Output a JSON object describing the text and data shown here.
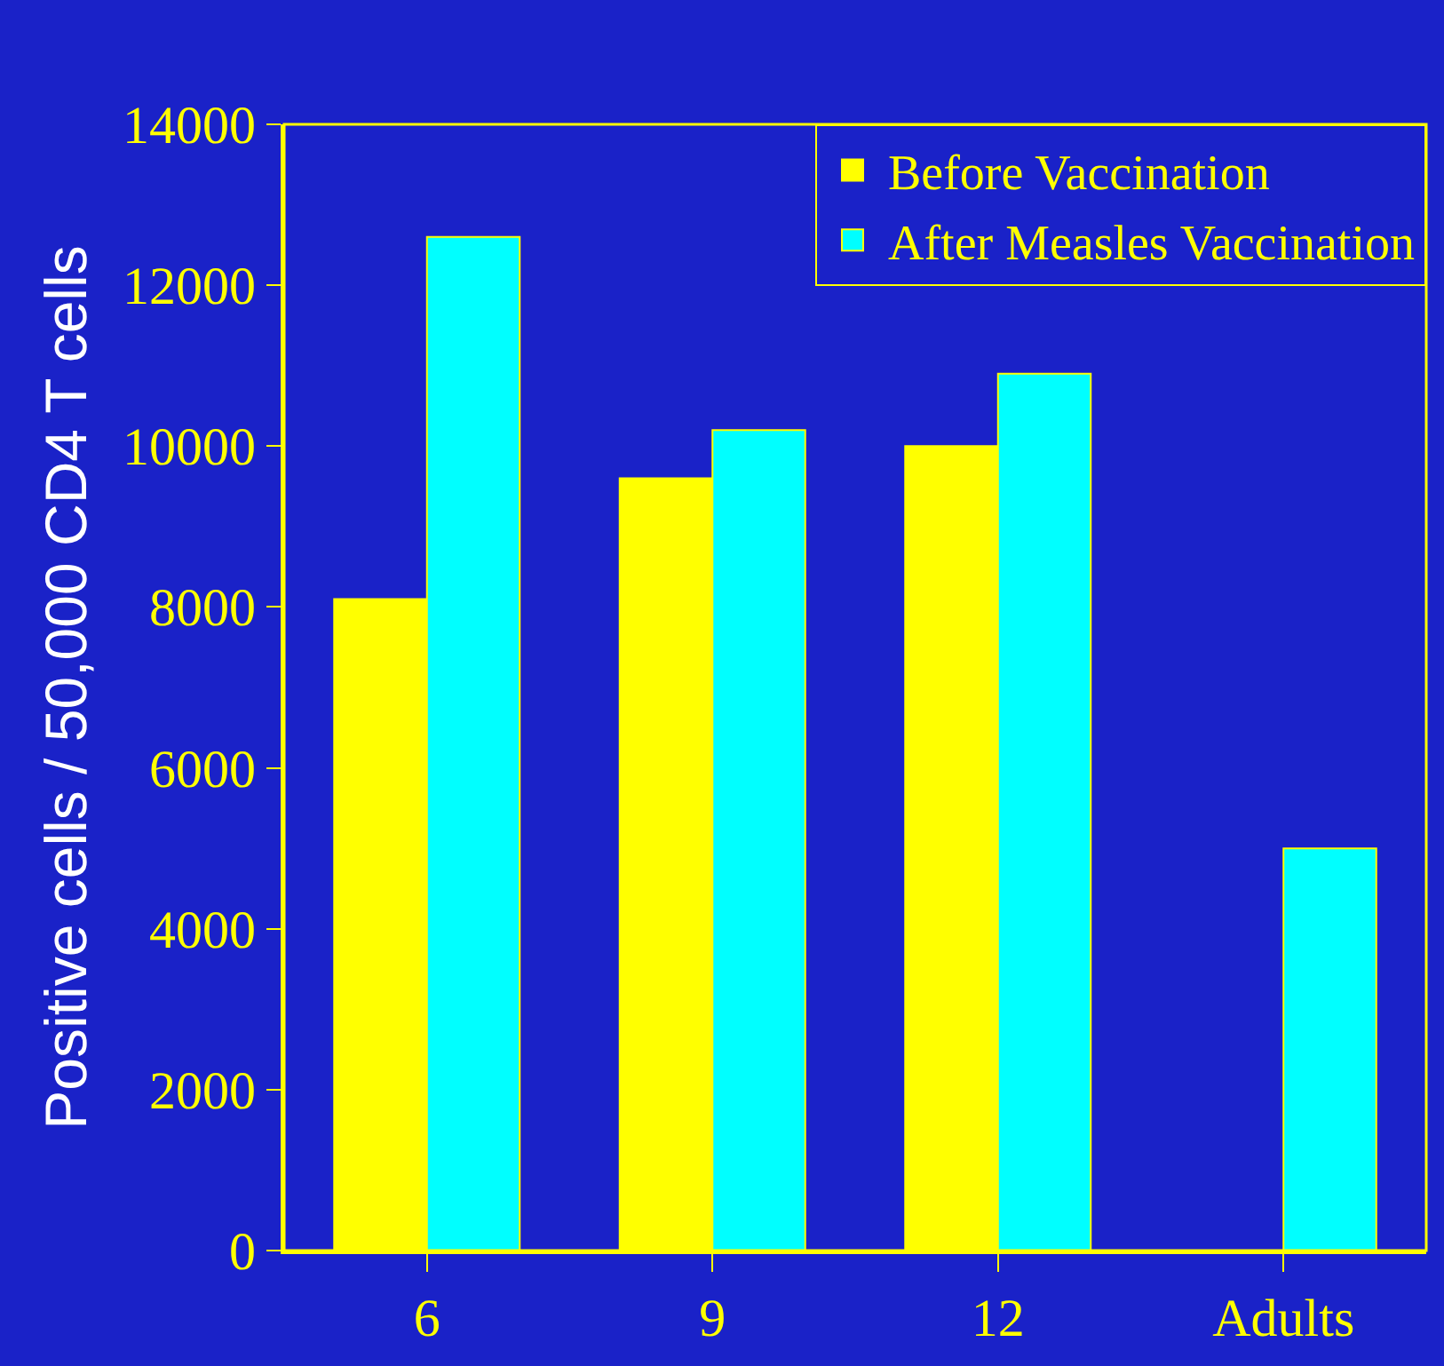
{
  "chart_data": {
    "type": "bar",
    "ylabel": "Positive cells / 50,000 CD4 T cells",
    "categories": [
      "6",
      "9",
      "12",
      "Adults"
    ],
    "series": [
      {
        "name": "Before Vaccination",
        "color": "#ffff00",
        "values": [
          8100,
          9600,
          10000,
          null
        ]
      },
      {
        "name": "After Measles Vaccination",
        "color": "#00ffff",
        "values": [
          12600,
          10200,
          10900,
          5000
        ]
      }
    ],
    "ylim": [
      0,
      14000
    ],
    "yticks": [
      0,
      2000,
      4000,
      6000,
      8000,
      10000,
      12000,
      14000
    ],
    "grid": false,
    "legend": "top right"
  }
}
